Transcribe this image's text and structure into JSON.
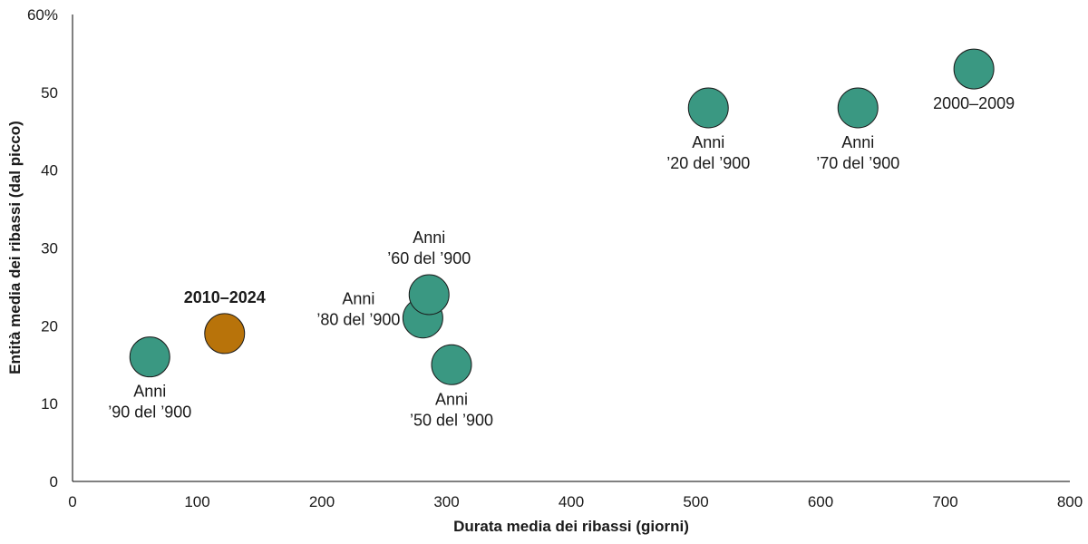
{
  "chart_data": {
    "type": "scatter",
    "xlabel": "Durata media dei ribassi (giorni)",
    "ylabel": "Entità media dei ribassi (dal picco)",
    "xlim": [
      0,
      800
    ],
    "ylim": [
      0,
      60
    ],
    "x_ticks": [
      "0",
      "100",
      "200",
      "300",
      "400",
      "500",
      "600",
      "700",
      "800"
    ],
    "y_ticks": [
      "0",
      "10",
      "20",
      "30",
      "40",
      "50",
      "60%"
    ],
    "grid": false,
    "colors": {
      "default": "#3a9882",
      "highlight": "#b8730a"
    },
    "points": [
      {
        "label_lines": [
          "Anni",
          "’90 del ’900"
        ],
        "x": 62,
        "y": 16,
        "highlight": false,
        "bold": false,
        "label_pos": "below"
      },
      {
        "label_lines": [
          "2010–2024"
        ],
        "x": 122,
        "y": 19,
        "highlight": true,
        "bold": true,
        "label_pos": "above"
      },
      {
        "label_lines": [
          "Anni",
          "’80 del ’900"
        ],
        "x": 281,
        "y": 21,
        "highlight": false,
        "bold": false,
        "label_pos": "left"
      },
      {
        "label_lines": [
          "Anni",
          "’60 del ’900"
        ],
        "x": 286,
        "y": 24,
        "highlight": false,
        "bold": false,
        "label_pos": "above"
      },
      {
        "label_lines": [
          "Anni",
          "’50 del ’900"
        ],
        "x": 304,
        "y": 15,
        "highlight": false,
        "bold": false,
        "label_pos": "below"
      },
      {
        "label_lines": [
          "Anni",
          "’20 del ’900"
        ],
        "x": 510,
        "y": 48,
        "highlight": false,
        "bold": false,
        "label_pos": "below"
      },
      {
        "label_lines": [
          "Anni",
          "’70 del ’900"
        ],
        "x": 630,
        "y": 48,
        "highlight": false,
        "bold": false,
        "label_pos": "below"
      },
      {
        "label_lines": [
          "2000–2009"
        ],
        "x": 723,
        "y": 53,
        "highlight": false,
        "bold": false,
        "label_pos": "below"
      }
    ]
  }
}
